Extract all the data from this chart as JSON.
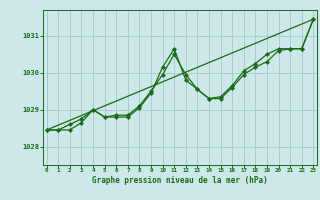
{
  "xlabel": "Graphe pression niveau de la mer (hPa)",
  "background_color": "#cce8e8",
  "grid_color": "#aacccc",
  "line_color": "#1a6b1a",
  "x_ticks": [
    0,
    1,
    2,
    3,
    4,
    5,
    6,
    7,
    8,
    9,
    10,
    11,
    12,
    13,
    14,
    15,
    16,
    17,
    18,
    19,
    20,
    21,
    22,
    23
  ],
  "y_ticks": [
    1028,
    1029,
    1030,
    1031
  ],
  "ylim": [
    1027.5,
    1031.7
  ],
  "xlim": [
    -0.3,
    23.3
  ],
  "series1": [
    1028.45,
    1028.45,
    1028.45,
    1028.65,
    1029.0,
    1028.8,
    1028.8,
    1028.8,
    1029.05,
    1029.45,
    1030.15,
    1030.65,
    1029.8,
    1029.55,
    1029.3,
    1029.3,
    1029.6,
    1029.95,
    1030.15,
    1030.3,
    1030.6,
    1030.65,
    1030.65,
    1031.45
  ],
  "series2": [
    1028.45,
    1028.45,
    1028.6,
    1028.75,
    1029.0,
    1028.8,
    1028.85,
    1028.85,
    1029.1,
    1029.5,
    1029.95,
    1030.5,
    1029.95,
    1029.55,
    1029.3,
    1029.35,
    1029.65,
    1030.05,
    1030.25,
    1030.5,
    1030.65,
    1030.65,
    1030.65,
    1031.45
  ],
  "trend_x": [
    0,
    23
  ],
  "trend_y": [
    1028.45,
    1031.45
  ]
}
